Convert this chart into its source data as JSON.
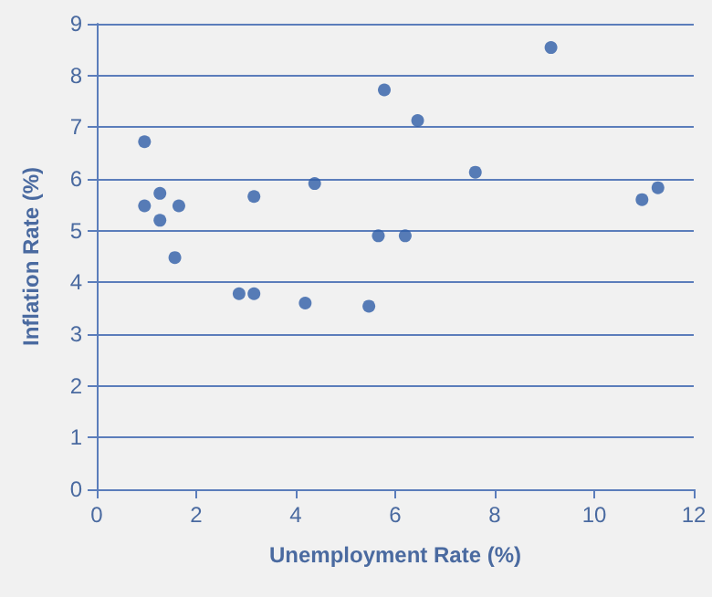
{
  "chart_data": {
    "type": "scatter",
    "xlabel": "Unemployment Rate (%)",
    "ylabel": "Inflation Rate (%)",
    "x": [
      0.96,
      0.96,
      1.27,
      1.27,
      1.65,
      1.57,
      2.86,
      3.16,
      3.16,
      4.38,
      4.19,
      5.47,
      5.66,
      5.78,
      6.45,
      6.2,
      7.61,
      9.13,
      10.96,
      11.28
    ],
    "series": [
      {
        "color": "#2f5ea8",
        "values": [
          6.72,
          5.48,
          5.72,
          5.2,
          5.48,
          4.48,
          3.78,
          3.78,
          5.66,
          5.91,
          3.6,
          3.54,
          4.9,
          7.72,
          7.13,
          4.9,
          6.13,
          8.54,
          5.6,
          5.83
        ]
      }
    ],
    "xlim": [
      0,
      12
    ],
    "xticks": [
      0,
      2,
      4,
      6,
      8,
      10,
      12
    ],
    "ylim": [
      0,
      9
    ],
    "yticks": [
      0,
      1,
      2,
      3,
      4,
      5,
      6,
      7,
      8,
      9
    ],
    "grid": "y",
    "marker": "circle"
  }
}
